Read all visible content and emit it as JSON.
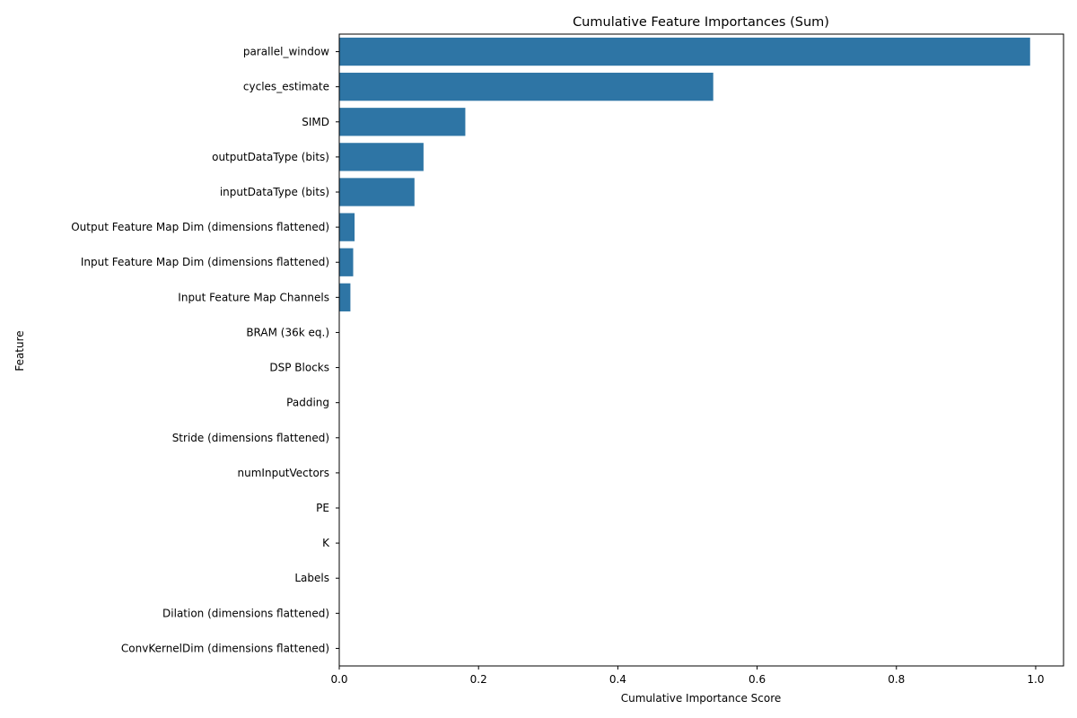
{
  "chart_data": {
    "type": "bar",
    "orientation": "horizontal",
    "title": "Cumulative Feature Importances (Sum)",
    "xlabel": "Cumulative Importance Score",
    "ylabel": "Feature",
    "xlim": [
      0,
      1.04
    ],
    "xticks": [
      0.0,
      0.2,
      0.4,
      0.6,
      0.8,
      1.0
    ],
    "xtick_labels": [
      "0.0",
      "0.2",
      "0.4",
      "0.6",
      "0.8",
      "1.0"
    ],
    "grid": false,
    "bar_color": "#2e75a5",
    "categories": [
      "parallel_window",
      "cycles_estimate",
      "SIMD",
      "outputDataType (bits)",
      "inputDataType (bits)",
      "Output Feature Map Dim (dimensions flattened)",
      "Input Feature Map Dim (dimensions flattened)",
      "Input Feature Map Channels",
      "BRAM (36k eq.)",
      "DSP Blocks",
      "Padding",
      "Stride (dimensions flattened)",
      "numInputVectors",
      "PE",
      "K",
      "Labels",
      "Dilation (dimensions flattened)",
      "ConvKernelDim (dimensions flattened)"
    ],
    "values": [
      0.992,
      0.537,
      0.181,
      0.121,
      0.108,
      0.022,
      0.02,
      0.016,
      0,
      0,
      0,
      0,
      0,
      0,
      0,
      0,
      0,
      0
    ]
  }
}
